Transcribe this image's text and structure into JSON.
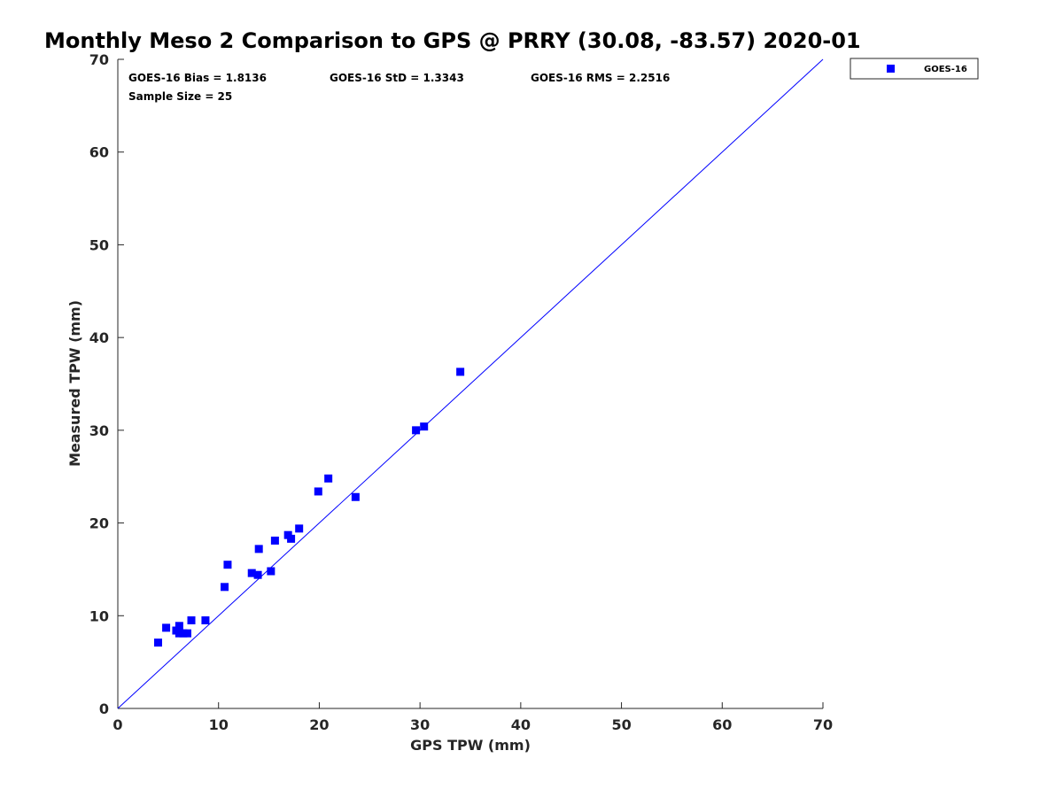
{
  "colors": {
    "series": "#0000ff",
    "reference_line": "#0000ff",
    "axis": "#262626",
    "text": "#000000"
  },
  "stats": {
    "bias": "GOES-16 Bias = 1.8136",
    "std": "GOES-16 StD = 1.3343",
    "rms": "GOES-16 RMS = 2.2516",
    "sample_size": "Sample Size = 25"
  },
  "chart_data": {
    "type": "scatter",
    "title": "Monthly Meso 2 Comparison to GPS @ PRRY (30.08, -83.57) 2020-01",
    "xlabel": "GPS TPW (mm)",
    "ylabel": "Measured TPW (mm)",
    "xlim": [
      0,
      70
    ],
    "ylim": [
      0,
      70
    ],
    "xticks": [
      "0",
      "10",
      "20",
      "30",
      "40",
      "50",
      "60",
      "70"
    ],
    "yticks": [
      "0",
      "10",
      "20",
      "30",
      "40",
      "50",
      "60",
      "70"
    ],
    "xtick_values": [
      0,
      10,
      20,
      30,
      40,
      50,
      60,
      70
    ],
    "ytick_values": [
      0,
      10,
      20,
      30,
      40,
      50,
      60,
      70
    ],
    "grid": false,
    "legend_position": "top-right, outside plot area",
    "reference_line": {
      "x": [
        0,
        70
      ],
      "y": [
        0,
        70
      ]
    },
    "series": [
      {
        "name": "GOES-16",
        "marker": "square",
        "points": [
          {
            "x": 4.0,
            "y": 7.1
          },
          {
            "x": 4.8,
            "y": 8.7
          },
          {
            "x": 5.8,
            "y": 8.4
          },
          {
            "x": 6.1,
            "y": 8.9
          },
          {
            "x": 6.1,
            "y": 8.1
          },
          {
            "x": 6.5,
            "y": 8.1
          },
          {
            "x": 6.9,
            "y": 8.1
          },
          {
            "x": 7.3,
            "y": 9.5
          },
          {
            "x": 8.7,
            "y": 9.5
          },
          {
            "x": 10.6,
            "y": 13.1
          },
          {
            "x": 10.9,
            "y": 15.5
          },
          {
            "x": 13.3,
            "y": 14.6
          },
          {
            "x": 13.9,
            "y": 14.4
          },
          {
            "x": 14.0,
            "y": 17.2
          },
          {
            "x": 15.2,
            "y": 14.8
          },
          {
            "x": 15.6,
            "y": 18.1
          },
          {
            "x": 16.9,
            "y": 18.7
          },
          {
            "x": 17.2,
            "y": 18.3
          },
          {
            "x": 18.0,
            "y": 19.4
          },
          {
            "x": 19.9,
            "y": 23.4
          },
          {
            "x": 20.9,
            "y": 24.8
          },
          {
            "x": 23.6,
            "y": 22.8
          },
          {
            "x": 29.6,
            "y": 30.0
          },
          {
            "x": 30.4,
            "y": 30.4
          },
          {
            "x": 34.0,
            "y": 36.3
          }
        ]
      }
    ]
  }
}
